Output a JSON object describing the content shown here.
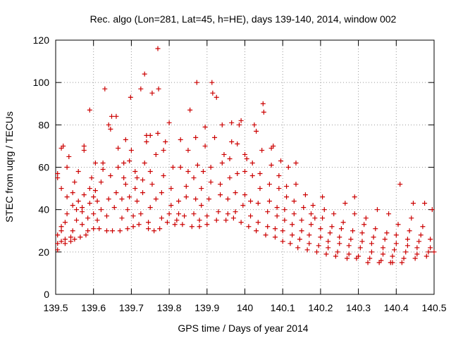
{
  "chart_data": {
    "type": "scatter",
    "title": "Rec. algo (Lon=281, Lat=45, h=HE), days 139-140, 2014, window 002",
    "xlabel": "GPS time / Days of year 2014",
    "ylabel": "STEC from uqrg / TECUs",
    "xlim": [
      139.5,
      140.5
    ],
    "ylim": [
      0,
      120
    ],
    "xticks": [
      139.5,
      139.6,
      139.7,
      139.8,
      139.9,
      140.0,
      140.1,
      140.2,
      140.3,
      140.4,
      140.5
    ],
    "xtick_labels": [
      "139.5",
      "139.6",
      "139.7",
      "139.8",
      "139.9",
      "140",
      "140.1",
      "140.2",
      "140.3",
      "140.4",
      "140.5"
    ],
    "yticks": [
      0,
      20,
      40,
      60,
      80,
      100,
      120
    ],
    "ytick_labels": [
      "0",
      "20",
      "40",
      "60",
      "80",
      "100",
      "120"
    ],
    "grid": "dotted",
    "marker": "+",
    "marker_color": "#cc0000",
    "points": [
      [
        139.505,
        21
      ],
      [
        139.505,
        24
      ],
      [
        139.505,
        28
      ],
      [
        139.505,
        55
      ],
      [
        139.505,
        57
      ],
      [
        139.515,
        25
      ],
      [
        139.515,
        30
      ],
      [
        139.515,
        32
      ],
      [
        139.515,
        50
      ],
      [
        139.515,
        69
      ],
      [
        139.52,
        70
      ],
      [
        139.525,
        24
      ],
      [
        139.525,
        26
      ],
      [
        139.525,
        34
      ],
      [
        139.53,
        38
      ],
      [
        139.53,
        46
      ],
      [
        139.53,
        60
      ],
      [
        139.535,
        65
      ],
      [
        139.54,
        25
      ],
      [
        139.54,
        27
      ],
      [
        139.545,
        30
      ],
      [
        139.545,
        42
      ],
      [
        139.545,
        48
      ],
      [
        139.55,
        53
      ],
      [
        139.55,
        26
      ],
      [
        139.555,
        35
      ],
      [
        139.555,
        40
      ],
      [
        139.56,
        44
      ],
      [
        139.56,
        58
      ],
      [
        139.565,
        27
      ],
      [
        139.57,
        33
      ],
      [
        139.57,
        39
      ],
      [
        139.57,
        41
      ],
      [
        139.575,
        68
      ],
      [
        139.575,
        70
      ],
      [
        139.575,
        47
      ],
      [
        139.58,
        28
      ],
      [
        139.585,
        30
      ],
      [
        139.585,
        36
      ],
      [
        139.59,
        43
      ],
      [
        139.59,
        50
      ],
      [
        139.59,
        87
      ],
      [
        139.595,
        55
      ],
      [
        139.6,
        31
      ],
      [
        139.6,
        38
      ],
      [
        139.6,
        46
      ],
      [
        139.605,
        49
      ],
      [
        139.605,
        62
      ],
      [
        139.61,
        44
      ],
      [
        139.61,
        35
      ],
      [
        139.615,
        31
      ],
      [
        139.62,
        40
      ],
      [
        139.62,
        53
      ],
      [
        139.625,
        62
      ],
      [
        139.625,
        59
      ],
      [
        139.63,
        97
      ],
      [
        139.635,
        30
      ],
      [
        139.635,
        37
      ],
      [
        139.64,
        45
      ],
      [
        139.64,
        80
      ],
      [
        139.645,
        56
      ],
      [
        139.645,
        78
      ],
      [
        139.648,
        84
      ],
      [
        139.65,
        30
      ],
      [
        139.655,
        41
      ],
      [
        139.66,
        48
      ],
      [
        139.66,
        84
      ],
      [
        139.665,
        60
      ],
      [
        139.665,
        69
      ],
      [
        139.67,
        30
      ],
      [
        139.675,
        36
      ],
      [
        139.675,
        45
      ],
      [
        139.68,
        55
      ],
      [
        139.68,
        62
      ],
      [
        139.685,
        52
      ],
      [
        139.685,
        73
      ],
      [
        139.69,
        31
      ],
      [
        139.69,
        40
      ],
      [
        139.695,
        46
      ],
      [
        139.695,
        63
      ],
      [
        139.698,
        93
      ],
      [
        139.7,
        68
      ],
      [
        139.705,
        32
      ],
      [
        139.705,
        37
      ],
      [
        139.71,
        50
      ],
      [
        139.71,
        58
      ],
      [
        139.715,
        44
      ],
      [
        139.715,
        55
      ],
      [
        139.72,
        33
      ],
      [
        139.725,
        97
      ],
      [
        139.725,
        38
      ],
      [
        139.73,
        54
      ],
      [
        139.73,
        48
      ],
      [
        139.735,
        62
      ],
      [
        139.735,
        104
      ],
      [
        139.74,
        72
      ],
      [
        139.74,
        75
      ],
      [
        139.745,
        31
      ],
      [
        139.745,
        34
      ],
      [
        139.75,
        41
      ],
      [
        139.75,
        58
      ],
      [
        139.75,
        75
      ],
      [
        139.755,
        95
      ],
      [
        139.755,
        52
      ],
      [
        139.76,
        30
      ],
      [
        139.765,
        45
      ],
      [
        139.765,
        66
      ],
      [
        139.77,
        76
      ],
      [
        139.77,
        116
      ],
      [
        139.772,
        97
      ],
      [
        139.775,
        31
      ],
      [
        139.78,
        36
      ],
      [
        139.78,
        48
      ],
      [
        139.785,
        56
      ],
      [
        139.785,
        68
      ],
      [
        139.79,
        72
      ],
      [
        139.795,
        34
      ],
      [
        139.8,
        38
      ],
      [
        139.8,
        81
      ],
      [
        139.805,
        42
      ],
      [
        139.805,
        50
      ],
      [
        139.81,
        60
      ],
      [
        139.815,
        33
      ],
      [
        139.82,
        35
      ],
      [
        139.825,
        44
      ],
      [
        139.825,
        38
      ],
      [
        139.83,
        60
      ],
      [
        139.83,
        73
      ],
      [
        139.835,
        33
      ],
      [
        139.84,
        37
      ],
      [
        139.845,
        46
      ],
      [
        139.845,
        51
      ],
      [
        139.85,
        58
      ],
      [
        139.85,
        68
      ],
      [
        139.855,
        87
      ],
      [
        139.86,
        32
      ],
      [
        139.865,
        38
      ],
      [
        139.865,
        55
      ],
      [
        139.87,
        45
      ],
      [
        139.87,
        74
      ],
      [
        139.873,
        100
      ],
      [
        139.875,
        61
      ],
      [
        139.88,
        32
      ],
      [
        139.88,
        35
      ],
      [
        139.885,
        42
      ],
      [
        139.885,
        50
      ],
      [
        139.89,
        58
      ],
      [
        139.895,
        70
      ],
      [
        139.895,
        79
      ],
      [
        139.9,
        33
      ],
      [
        139.9,
        37
      ],
      [
        139.905,
        45
      ],
      [
        139.91,
        53
      ],
      [
        139.91,
        60
      ],
      [
        139.913,
        100
      ],
      [
        139.915,
        95
      ],
      [
        139.92,
        74
      ],
      [
        139.925,
        93
      ],
      [
        139.925,
        35
      ],
      [
        139.93,
        39
      ],
      [
        139.935,
        47
      ],
      [
        139.935,
        52
      ],
      [
        139.94,
        62
      ],
      [
        139.94,
        80
      ],
      [
        139.945,
        66
      ],
      [
        139.95,
        35
      ],
      [
        139.955,
        38
      ],
      [
        139.955,
        45
      ],
      [
        139.96,
        55
      ],
      [
        139.96,
        64
      ],
      [
        139.965,
        72
      ],
      [
        139.965,
        81
      ],
      [
        139.97,
        36
      ],
      [
        139.975,
        39
      ],
      [
        139.975,
        48
      ],
      [
        139.98,
        57
      ],
      [
        139.98,
        71
      ],
      [
        139.985,
        80
      ],
      [
        139.99,
        82
      ],
      [
        139.99,
        34
      ],
      [
        139.995,
        42
      ],
      [
        140.0,
        47
      ],
      [
        140.0,
        58
      ],
      [
        140.0,
        66
      ],
      [
        140.005,
        64
      ],
      [
        140.01,
        32
      ],
      [
        140.015,
        37
      ],
      [
        140.015,
        44
      ],
      [
        140.02,
        56
      ],
      [
        140.02,
        62
      ],
      [
        140.025,
        80
      ],
      [
        140.03,
        77
      ],
      [
        140.03,
        30
      ],
      [
        140.035,
        34
      ],
      [
        140.035,
        43
      ],
      [
        140.04,
        50
      ],
      [
        140.04,
        57
      ],
      [
        140.045,
        68
      ],
      [
        140.048,
        90
      ],
      [
        140.05,
        86
      ],
      [
        140.055,
        28
      ],
      [
        140.06,
        32
      ],
      [
        140.06,
        39
      ],
      [
        140.065,
        44
      ],
      [
        140.065,
        52
      ],
      [
        140.07,
        61
      ],
      [
        140.07,
        69
      ],
      [
        140.075,
        70
      ],
      [
        140.08,
        27
      ],
      [
        140.08,
        31
      ],
      [
        140.085,
        37
      ],
      [
        140.085,
        41
      ],
      [
        140.09,
        50
      ],
      [
        140.09,
        56
      ],
      [
        140.095,
        63
      ],
      [
        140.1,
        25
      ],
      [
        140.1,
        30
      ],
      [
        140.105,
        35
      ],
      [
        140.105,
        40
      ],
      [
        140.11,
        46
      ],
      [
        140.11,
        51
      ],
      [
        140.115,
        60
      ],
      [
        140.12,
        24
      ],
      [
        140.125,
        28
      ],
      [
        140.125,
        33
      ],
      [
        140.13,
        38
      ],
      [
        140.13,
        44
      ],
      [
        140.135,
        52
      ],
      [
        140.135,
        62
      ],
      [
        140.14,
        22
      ],
      [
        140.145,
        26
      ],
      [
        140.15,
        30
      ],
      [
        140.15,
        35
      ],
      [
        140.155,
        41
      ],
      [
        140.16,
        47
      ],
      [
        140.165,
        21
      ],
      [
        140.17,
        24
      ],
      [
        140.17,
        28
      ],
      [
        140.175,
        33
      ],
      [
        140.175,
        38
      ],
      [
        140.18,
        42
      ],
      [
        140.185,
        36
      ],
      [
        140.19,
        20
      ],
      [
        140.195,
        23
      ],
      [
        140.2,
        27
      ],
      [
        140.2,
        31
      ],
      [
        140.205,
        36
      ],
      [
        140.205,
        46
      ],
      [
        140.21,
        40
      ],
      [
        140.215,
        19
      ],
      [
        140.22,
        22
      ],
      [
        140.22,
        25
      ],
      [
        140.225,
        29
      ],
      [
        140.23,
        32
      ],
      [
        140.235,
        38
      ],
      [
        140.24,
        18
      ],
      [
        140.245,
        20
      ],
      [
        140.25,
        24
      ],
      [
        140.25,
        27
      ],
      [
        140.255,
        31
      ],
      [
        140.26,
        34
      ],
      [
        140.265,
        43
      ],
      [
        140.27,
        17
      ],
      [
        140.275,
        19
      ],
      [
        140.275,
        23
      ],
      [
        140.28,
        26
      ],
      [
        140.285,
        30
      ],
      [
        140.29,
        38
      ],
      [
        140.29,
        46
      ],
      [
        140.295,
        17
      ],
      [
        140.3,
        18
      ],
      [
        140.305,
        22
      ],
      [
        140.31,
        25
      ],
      [
        140.31,
        29
      ],
      [
        140.315,
        33
      ],
      [
        140.32,
        36
      ],
      [
        140.325,
        15
      ],
      [
        140.33,
        17
      ],
      [
        140.335,
        20
      ],
      [
        140.335,
        24
      ],
      [
        140.34,
        27
      ],
      [
        140.345,
        31
      ],
      [
        140.35,
        40
      ],
      [
        140.355,
        15
      ],
      [
        140.36,
        16
      ],
      [
        140.365,
        19
      ],
      [
        140.365,
        22
      ],
      [
        140.37,
        26
      ],
      [
        140.375,
        29
      ],
      [
        140.38,
        38
      ],
      [
        140.385,
        15
      ],
      [
        140.39,
        15
      ],
      [
        140.39,
        18
      ],
      [
        140.395,
        21
      ],
      [
        140.4,
        24
      ],
      [
        140.4,
        28
      ],
      [
        140.405,
        33
      ],
      [
        140.41,
        52
      ],
      [
        140.415,
        15
      ],
      [
        140.42,
        17
      ],
      [
        140.425,
        20
      ],
      [
        140.43,
        23
      ],
      [
        140.43,
        26
      ],
      [
        140.435,
        30
      ],
      [
        140.44,
        36
      ],
      [
        140.445,
        43
      ],
      [
        140.45,
        17
      ],
      [
        140.455,
        19
      ],
      [
        140.455,
        22
      ],
      [
        140.46,
        25
      ],
      [
        140.465,
        28
      ],
      [
        140.47,
        32
      ],
      [
        140.475,
        43
      ],
      [
        140.48,
        18
      ],
      [
        140.485,
        20
      ],
      [
        140.49,
        22
      ],
      [
        140.49,
        26
      ],
      [
        140.495,
        40
      ],
      [
        140.5,
        20
      ]
    ]
  }
}
